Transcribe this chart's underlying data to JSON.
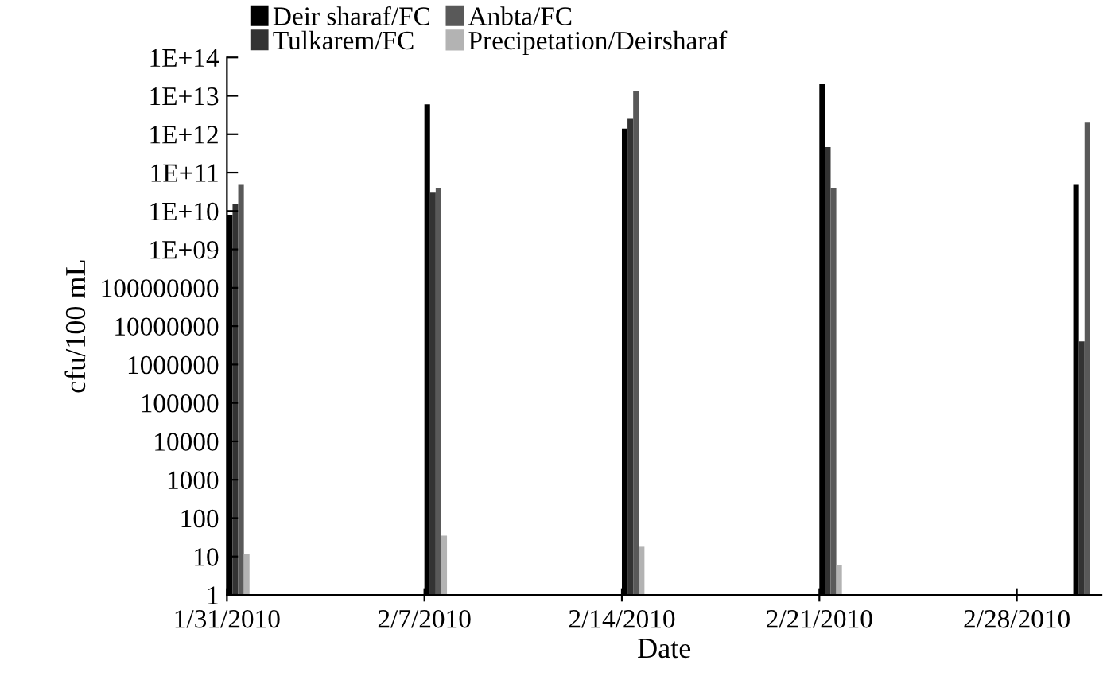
{
  "chart_data": {
    "type": "bar",
    "xlabel": "Date",
    "ylabel": "cfu/100 mL",
    "log": "y",
    "legend": "top",
    "grid": false,
    "x": [
      "2010-01-31",
      "2010-02-07",
      "2010-02-14",
      "2010-02-21",
      "2010-03-02"
    ],
    "xlim": [
      "2010-01-31",
      "2010-03-03"
    ],
    "xticks": [
      {
        "value": "2010-01-31",
        "label": "1/31/2010"
      },
      {
        "value": "2010-02-07",
        "label": "2/7/2010"
      },
      {
        "value": "2010-02-14",
        "label": "2/14/2010"
      },
      {
        "value": "2010-02-21",
        "label": "2/21/2010"
      },
      {
        "value": "2010-02-28",
        "label": "2/28/2010"
      }
    ],
    "ylim": [
      1,
      100000000000000
    ],
    "yticks": [
      1,
      10,
      100,
      1000,
      10000,
      100000,
      1000000,
      10000000,
      100000000,
      {
        "value": 1000000000,
        "label": "1E+09"
      },
      {
        "value": 10000000000,
        "label": "1E+10"
      },
      {
        "value": 100000000000,
        "label": "1E+11"
      },
      {
        "value": 1000000000000,
        "label": "1E+12"
      },
      {
        "value": 10000000000000,
        "label": "1E+13"
      },
      {
        "value": 100000000000000,
        "label": "1E+14"
      }
    ],
    "series": [
      {
        "name": "Deir sharaf/FC",
        "color": "#000000",
        "values": [
          8000000000,
          6000000000000,
          1400000000000,
          20000000000000,
          50000000000
        ]
      },
      {
        "name": "Tulkarem/FC",
        "color": "#333333",
        "values": [
          15000000000,
          30000000000,
          2500000000000,
          460000000000,
          4000000
        ]
      },
      {
        "name": "Anbta/FC",
        "color": "#595959",
        "values": [
          50000000000,
          40000000000,
          13000000000000,
          40000000000,
          2000000000000
        ]
      },
      {
        "name": "Precipetation/Deirsharaf",
        "color": "#b3b3b3",
        "values": [
          12,
          35,
          18,
          6,
          null
        ]
      }
    ]
  }
}
